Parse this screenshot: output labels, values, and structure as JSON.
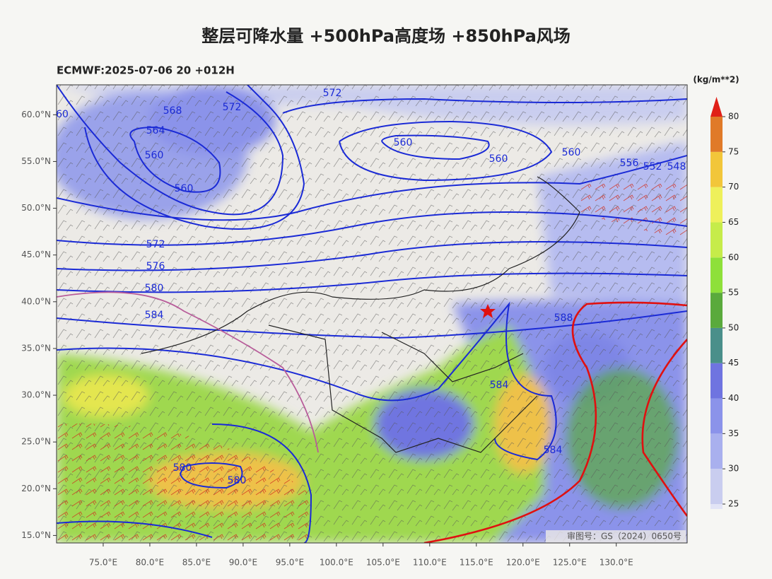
{
  "header": {
    "title": "整层可降水量 +500hPa高度场 +850hPa风场",
    "subtitle": "ECMWF:2025-07-06 20 +012H"
  },
  "map": {
    "lon_range": [
      70,
      137.6
    ],
    "lat_range": [
      14.2,
      63.2
    ],
    "lat_ticks": [
      {
        "value": 15,
        "label": "15.0°N"
      },
      {
        "value": 20,
        "label": "20.0°N"
      },
      {
        "value": 25,
        "label": "25.0°N"
      },
      {
        "value": 30,
        "label": "30.0°N"
      },
      {
        "value": 35,
        "label": "35.0°N"
      },
      {
        "value": 40,
        "label": "40.0°N"
      },
      {
        "value": 45,
        "label": "45.0°N"
      },
      {
        "value": 50,
        "label": "50.0°N"
      },
      {
        "value": 55,
        "label": "55.0°N"
      },
      {
        "value": 60,
        "label": "60.0°N"
      }
    ],
    "lon_ticks": [
      {
        "value": 75,
        "label": "75.0°E"
      },
      {
        "value": 80,
        "label": "80.0°E"
      },
      {
        "value": 85,
        "label": "85.0°E"
      },
      {
        "value": 90,
        "label": "90.0°E"
      },
      {
        "value": 95,
        "label": "95.0°E"
      },
      {
        "value": 100,
        "label": "100.0°E"
      },
      {
        "value": 105,
        "label": "105.0°E"
      },
      {
        "value": 110,
        "label": "110.0°E"
      },
      {
        "value": 115,
        "label": "115.0°E"
      },
      {
        "value": 120,
        "label": "120.0°E"
      },
      {
        "value": 125,
        "label": "125.0°E"
      },
      {
        "value": 130,
        "label": "130.0°E"
      }
    ],
    "contour_labels": [
      "60",
      "568",
      "572",
      "572",
      "564",
      "560",
      "560",
      "560",
      "560",
      "560",
      "556",
      "552",
      "548",
      "572",
      "576",
      "580",
      "584",
      "588",
      "584",
      "584",
      "580",
      "580"
    ],
    "approval": "审图号：GS（2024）0650号"
  },
  "colorbar": {
    "unit": "(kg/m**2)",
    "levels": [
      25,
      30,
      35,
      40,
      45,
      50,
      55,
      60,
      65,
      70,
      75,
      80
    ],
    "colors": [
      "#c9cdef",
      "#a9b0ee",
      "#8b93ea",
      "#6f74e0",
      "#4a8f8a",
      "#5aaa3c",
      "#8ee03a",
      "#c6ec4a",
      "#eef05a",
      "#f2c63a",
      "#e07a28",
      "#e02018"
    ]
  }
}
